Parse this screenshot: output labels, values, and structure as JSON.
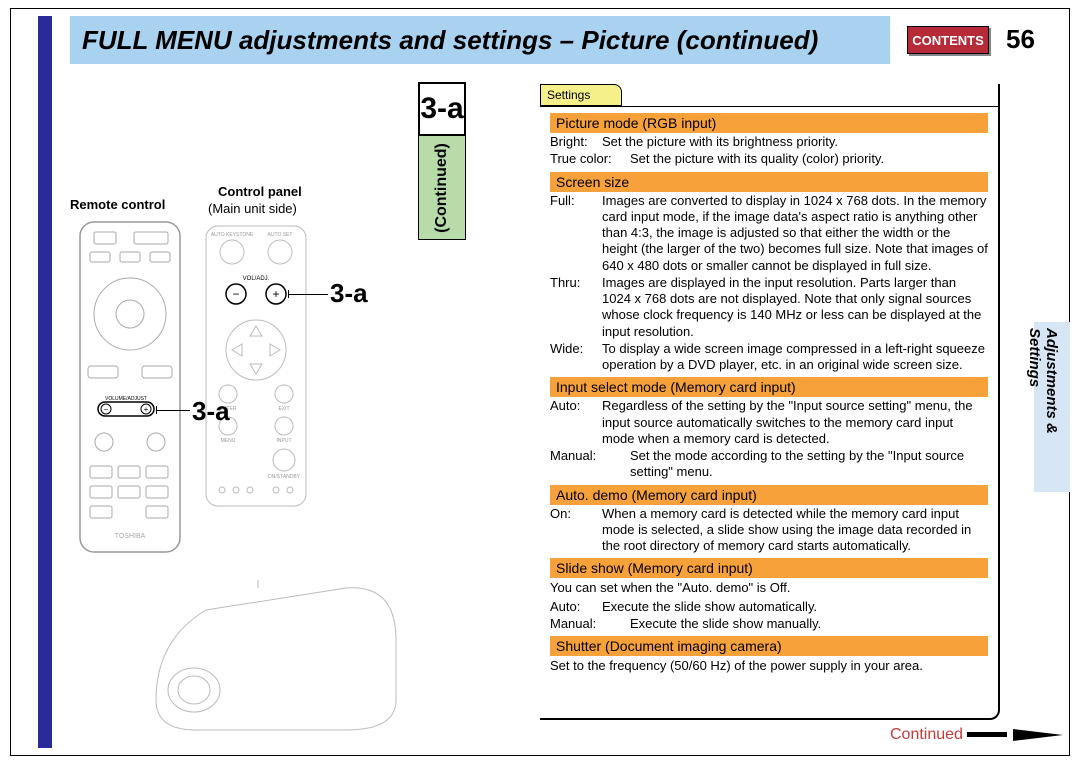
{
  "header": {
    "title": "FULL MENU adjustments and settings – Picture (continued)",
    "contents_btn": "CONTENTS",
    "page_number": "56"
  },
  "left_diagram": {
    "remote_control_label": "Remote control",
    "control_panel_label": "Control panel",
    "main_unit_label": "(Main unit side)",
    "callout_top": "3-a",
    "callout_side": "3-a"
  },
  "tab": {
    "label": "3-a",
    "continued": "(Continued)"
  },
  "settings": {
    "tab_label": "Settings",
    "sections": [
      {
        "header": "Picture mode (RGB input)",
        "rows": [
          {
            "key": "Bright:",
            "val": "Set the picture with its brightness priority."
          },
          {
            "key": "True color:",
            "key_wide": true,
            "val": "Set the picture with its quality (color) priority."
          }
        ]
      },
      {
        "header": "Screen size",
        "rows": [
          {
            "key": "Full:",
            "val": "Images are converted to display in 1024 x 768 dots. In the memory card input mode, if the image data's aspect ratio is anything other than 4:3, the image is adjusted so that either the width or the height (the larger of the two) becomes full size. Note that images of 640 x 480 dots or smaller cannot be displayed in full size."
          },
          {
            "key": "Thru:",
            "val": "Images are displayed in the input resolution. Parts larger than 1024 x 768 dots are not displayed. Note that only signal sources whose clock frequency is 140 MHz or less can be displayed at the input resolution."
          },
          {
            "key": "Wide:",
            "val": "To display a wide screen image compressed in a left-right squeeze operation by a DVD player, etc. in an original wide screen size."
          }
        ]
      },
      {
        "header": "Input select mode (Memory card input)",
        "rows": [
          {
            "key": "Auto:",
            "val": "Regardless of the setting by the \"Input source setting\" menu, the input source automatically switches to the memory card input mode when a memory card is detected."
          },
          {
            "key": "Manual:",
            "key_wide": true,
            "val": "Set the mode according to the setting by the \"Input source setting\" menu."
          }
        ]
      },
      {
        "header": "Auto. demo (Memory card input)",
        "rows": [
          {
            "key": "On:",
            "val": "When a memory card is detected while the memory card input mode is selected, a slide show using the image data recorded in the root directory of memory card starts automatically."
          }
        ]
      },
      {
        "header": "Slide show (Memory card input)",
        "pretext": "You can set when the \"Auto. demo\" is Off.",
        "rows": [
          {
            "key": "Auto:",
            "val": "Execute the slide show automatically."
          },
          {
            "key": "Manual:",
            "key_wide": true,
            "val": "Execute the slide show manually."
          }
        ]
      },
      {
        "header": "Shutter (Document imaging camera)",
        "posttext": "Set to the frequency (50/60 Hz) of the power supply in your area."
      }
    ]
  },
  "side_tab": {
    "line1": "Adjustments &",
    "line2": "Settings"
  },
  "footer": {
    "continued": "Continued"
  },
  "colors": {
    "title_bg": "#a9d1f0",
    "left_bar": "#2a2a9a",
    "contents_bg": "#b72b39",
    "section_header_bg": "#f7a13a",
    "settings_tab_bg": "#f5f08a",
    "continued_strip_bg": "#b7dba9",
    "side_tab_bg": "#d7e6f5",
    "continued_text": "#c63a3a"
  }
}
